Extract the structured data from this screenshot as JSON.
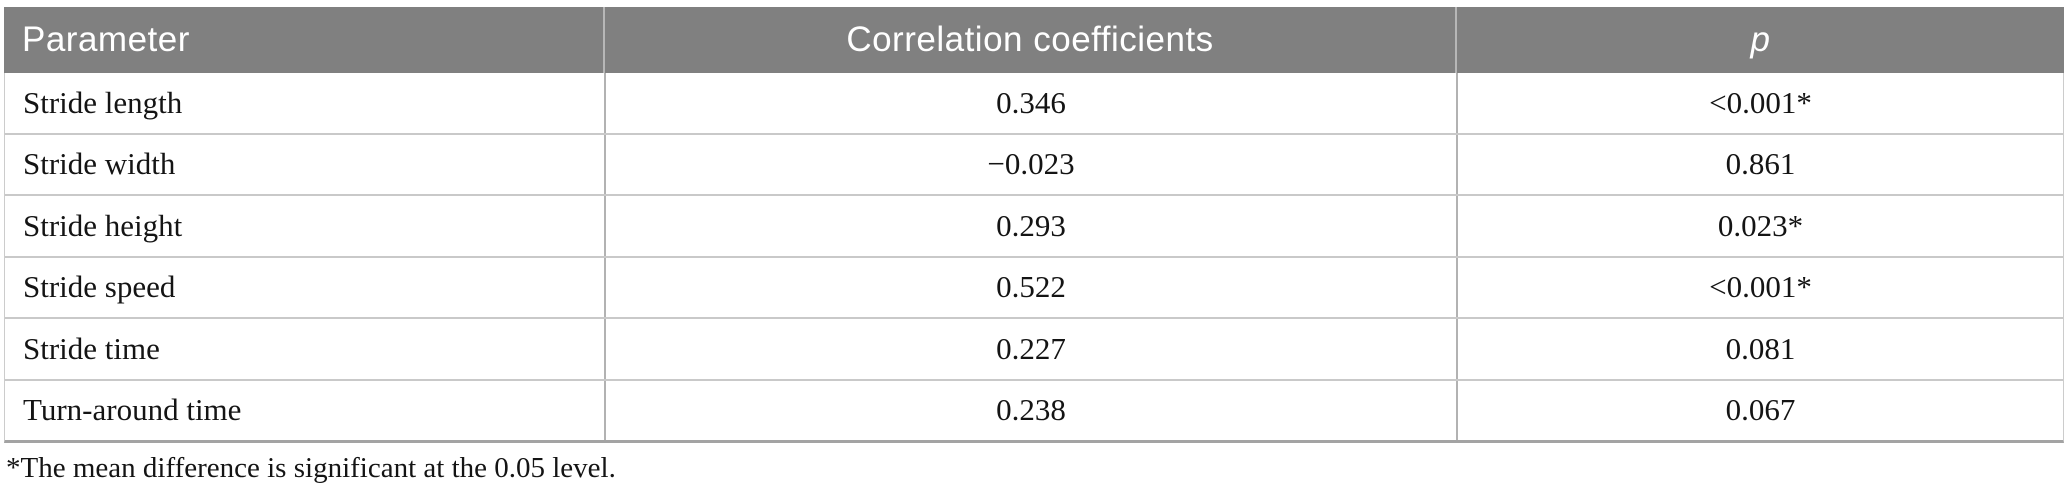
{
  "table": {
    "columns": [
      {
        "label": "Parameter",
        "align": "left",
        "italic": false
      },
      {
        "label": "Correlation coefficients",
        "align": "center",
        "italic": false
      },
      {
        "label": "p",
        "align": "center",
        "italic": true
      }
    ],
    "rows": [
      [
        "Stride length",
        "0.346",
        "<0.001*"
      ],
      [
        "Stride width",
        "−0.023",
        "0.861"
      ],
      [
        "Stride height",
        "0.293",
        "0.023*"
      ],
      [
        "Stride speed",
        "0.522",
        "<0.001*"
      ],
      [
        "Stride time",
        "0.227",
        "0.081"
      ],
      [
        "Turn-around time",
        "0.238",
        "0.067"
      ]
    ],
    "footnote": "*The mean difference is significant at the 0.05 level."
  },
  "colors": {
    "header_bg": "#808080",
    "header_text": "#ffffff",
    "header_divider": "#b7b7b7",
    "row_rule": "#c9c9c9",
    "column_divider": "#b2b2b2",
    "bottom_border": "#a3a3a3",
    "body_text": "#141414"
  }
}
